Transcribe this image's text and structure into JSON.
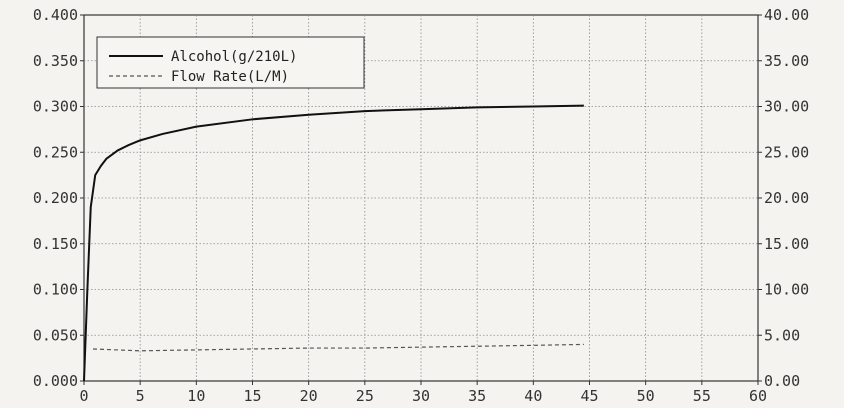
{
  "chart_data": {
    "type": "line",
    "title": "",
    "xlabel": "",
    "ylabel": "",
    "y2label": "",
    "xlim": [
      0,
      60
    ],
    "ylim": [
      0,
      0.4
    ],
    "y2lim": [
      0,
      40
    ],
    "grid": true,
    "legend_position": "top-left",
    "x_ticks": [
      "0",
      "5",
      "10",
      "15",
      "20",
      "25",
      "30",
      "35",
      "40",
      "45",
      "50",
      "55",
      "60"
    ],
    "y_ticks": [
      "0.000",
      "0.050",
      "0.100",
      "0.150",
      "0.200",
      "0.250",
      "0.300",
      "0.350",
      "0.400"
    ],
    "y2_ticks": [
      "0.00",
      "5.00",
      "10.00",
      "15.00",
      "20.00",
      "25.00",
      "30.00",
      "35.00",
      "40.00"
    ],
    "series": [
      {
        "name": "Alcohol(g/210L)",
        "axis": "left",
        "style": "solid",
        "color": "#111111",
        "x": [
          0,
          0.3,
          0.6,
          1.0,
          1.5,
          2,
          3,
          4,
          5,
          7,
          10,
          15,
          20,
          25,
          30,
          35,
          40,
          44.5
        ],
        "y": [
          0.0,
          0.1,
          0.19,
          0.225,
          0.235,
          0.243,
          0.252,
          0.258,
          0.263,
          0.27,
          0.278,
          0.286,
          0.291,
          0.295,
          0.297,
          0.299,
          0.3,
          0.301
        ]
      },
      {
        "name": "Flow Rate(L/M)",
        "axis": "right",
        "style": "dashed",
        "color": "#555555",
        "x": [
          0.8,
          5,
          10,
          15,
          20,
          25,
          30,
          35,
          40,
          44.5
        ],
        "y": [
          3.5,
          3.3,
          3.4,
          3.5,
          3.6,
          3.6,
          3.7,
          3.8,
          3.9,
          4.0
        ]
      }
    ]
  }
}
